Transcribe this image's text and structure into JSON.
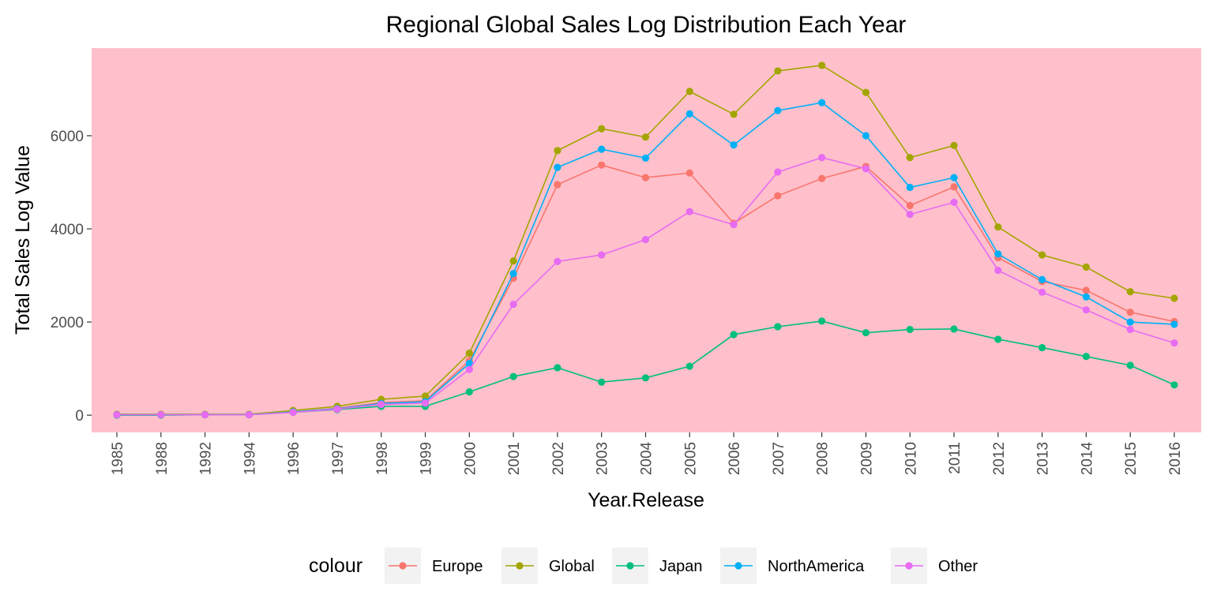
{
  "chart_data": {
    "type": "line",
    "title": "Regional Global Sales Log Distribution Each Year",
    "xlabel": "Year.Release",
    "ylabel": "Total Sales Log Value",
    "legend_title": "colour",
    "legend_position": "bottom",
    "grid": false,
    "panel_background": "#ffc0cb",
    "x": [
      "1985",
      "1988",
      "1992",
      "1994",
      "1996",
      "1997",
      "1998",
      "1999",
      "2000",
      "2001",
      "2002",
      "2003",
      "2004",
      "2005",
      "2006",
      "2007",
      "2008",
      "2009",
      "2010",
      "2011",
      "2012",
      "2013",
      "2014",
      "2015",
      "2016"
    ],
    "yticks": [
      0,
      2000,
      4000,
      6000
    ],
    "ylim": [
      -370,
      7880
    ],
    "series": [
      {
        "name": "Europe",
        "color": "#F8766D",
        "values": [
          10,
          10,
          10,
          10,
          70,
          150,
          270,
          310,
          1170,
          2940,
          4950,
          5370,
          5100,
          5200,
          4120,
          4710,
          5080,
          5340,
          4500,
          4900,
          3380,
          2870,
          2680,
          2210,
          2010
        ]
      },
      {
        "name": "Global",
        "color": "#A3A500",
        "values": [
          20,
          20,
          20,
          20,
          100,
          190,
          340,
          410,
          1330,
          3310,
          5680,
          6150,
          5970,
          6950,
          6460,
          7390,
          7510,
          6930,
          5530,
          5790,
          4040,
          3440,
          3180,
          2650,
          2510
        ]
      },
      {
        "name": "Japan",
        "color": "#00BF7D",
        "values": [
          0,
          0,
          10,
          10,
          60,
          120,
          190,
          190,
          500,
          830,
          1020,
          710,
          800,
          1050,
          1730,
          1900,
          2020,
          1770,
          1840,
          1850,
          1630,
          1450,
          1260,
          1070,
          650
        ]
      },
      {
        "name": "NorthAmerica",
        "color": "#00B0F6",
        "values": [
          10,
          10,
          10,
          10,
          70,
          140,
          250,
          290,
          1110,
          3040,
          5320,
          5710,
          5520,
          6470,
          5800,
          6540,
          6710,
          6000,
          4890,
          5100,
          3460,
          2910,
          2540,
          2000,
          1950
        ]
      },
      {
        "name": "Other",
        "color": "#E76BF3",
        "values": [
          10,
          10,
          10,
          10,
          60,
          130,
          230,
          260,
          980,
          2380,
          3300,
          3440,
          3770,
          4370,
          4090,
          5220,
          5530,
          5290,
          4310,
          4570,
          3110,
          2640,
          2260,
          1840,
          1550
        ]
      }
    ]
  }
}
